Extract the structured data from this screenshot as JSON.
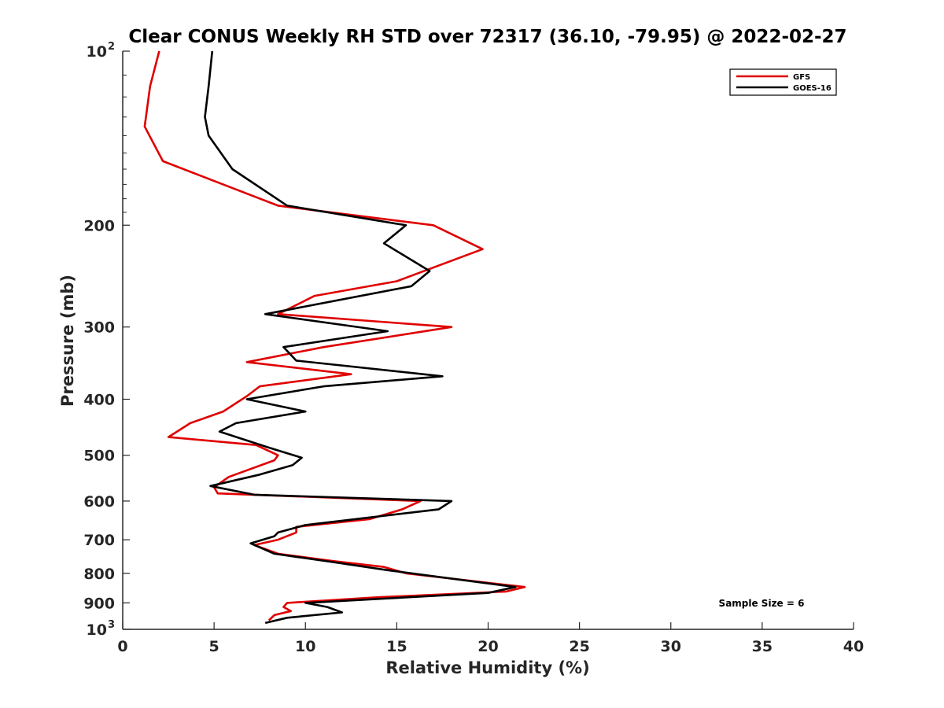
{
  "chart_data": {
    "type": "line",
    "title": "Clear CONUS Weekly RH STD over 72317 (36.10, -79.95) @ 2022-02-27",
    "xlabel": "Relative Humidity (%)",
    "ylabel": "Pressure (mb)",
    "xlim": [
      0,
      40
    ],
    "ylim": [
      100,
      1000
    ],
    "y_scale": "log",
    "y_reversed": true,
    "x_ticks": [
      0,
      5,
      10,
      15,
      20,
      25,
      30,
      35,
      40
    ],
    "y_ticks": [
      {
        "value": 200,
        "label": "200"
      },
      {
        "value": 300,
        "label": "300"
      },
      {
        "value": 400,
        "label": "400"
      },
      {
        "value": 500,
        "label": "500"
      },
      {
        "value": 600,
        "label": "600"
      },
      {
        "value": 700,
        "label": "700"
      },
      {
        "value": 800,
        "label": "800"
      },
      {
        "value": 900,
        "label": "900"
      }
    ],
    "y_end_ticks": [
      {
        "value": 100,
        "base": "10",
        "exp": "2"
      },
      {
        "value": 1000,
        "base": "10",
        "exp": "3"
      }
    ],
    "grid": false,
    "legend_position": "top-right",
    "annotation": "Sample Size = 6",
    "series": [
      {
        "name": "GFS",
        "color": "#e00000",
        "points": [
          [
            2.0,
            100
          ],
          [
            1.5,
            115
          ],
          [
            1.2,
            135
          ],
          [
            2.2,
            155
          ],
          [
            8.5,
            185
          ],
          [
            17.0,
            200
          ],
          [
            19.7,
            220
          ],
          [
            15.0,
            250
          ],
          [
            10.5,
            265
          ],
          [
            8.5,
            285
          ],
          [
            18.0,
            300
          ],
          [
            11.0,
            325
          ],
          [
            6.8,
            345
          ],
          [
            12.5,
            362
          ],
          [
            7.5,
            380
          ],
          [
            6.8,
            395
          ],
          [
            5.5,
            420
          ],
          [
            3.7,
            440
          ],
          [
            2.5,
            465
          ],
          [
            7.3,
            480
          ],
          [
            8.5,
            500
          ],
          [
            8.3,
            510
          ],
          [
            5.8,
            545
          ],
          [
            5.0,
            568
          ],
          [
            5.2,
            582
          ],
          [
            16.3,
            600
          ],
          [
            15.3,
            620
          ],
          [
            13.5,
            645
          ],
          [
            9.5,
            665
          ],
          [
            9.5,
            680
          ],
          [
            8.5,
            700
          ],
          [
            7.2,
            715
          ],
          [
            8.5,
            740
          ],
          [
            11.5,
            762
          ],
          [
            14.3,
            780
          ],
          [
            15.5,
            800
          ],
          [
            22.0,
            845
          ],
          [
            21.0,
            860
          ],
          [
            14.0,
            880
          ],
          [
            9.0,
            900
          ],
          [
            8.8,
            915
          ],
          [
            9.2,
            930
          ],
          [
            8.3,
            945
          ],
          [
            8.0,
            965
          ]
        ]
      },
      {
        "name": "GOES-16",
        "color": "#000000",
        "points": [
          [
            4.9,
            100
          ],
          [
            4.7,
            115
          ],
          [
            4.5,
            130
          ],
          [
            4.7,
            140
          ],
          [
            6.0,
            160
          ],
          [
            9.0,
            185
          ],
          [
            15.5,
            200
          ],
          [
            14.3,
            215
          ],
          [
            16.8,
            240
          ],
          [
            15.8,
            255
          ],
          [
            7.8,
            285
          ],
          [
            14.5,
            305
          ],
          [
            8.8,
            325
          ],
          [
            9.5,
            343
          ],
          [
            17.5,
            365
          ],
          [
            11.0,
            380
          ],
          [
            6.8,
            400
          ],
          [
            10.0,
            420
          ],
          [
            6.2,
            440
          ],
          [
            5.3,
            455
          ],
          [
            8.0,
            485
          ],
          [
            9.8,
            505
          ],
          [
            9.3,
            520
          ],
          [
            7.5,
            540
          ],
          [
            4.8,
            565
          ],
          [
            7.2,
            585
          ],
          [
            18.0,
            600
          ],
          [
            17.3,
            620
          ],
          [
            10.0,
            660
          ],
          [
            8.5,
            680
          ],
          [
            8.3,
            690
          ],
          [
            7.0,
            710
          ],
          [
            8.3,
            740
          ],
          [
            11.5,
            765
          ],
          [
            14.5,
            790
          ],
          [
            21.5,
            845
          ],
          [
            20.0,
            865
          ],
          [
            10.0,
            900
          ],
          [
            11.2,
            915
          ],
          [
            12.0,
            935
          ],
          [
            9.0,
            955
          ],
          [
            7.8,
            975
          ]
        ]
      }
    ]
  }
}
